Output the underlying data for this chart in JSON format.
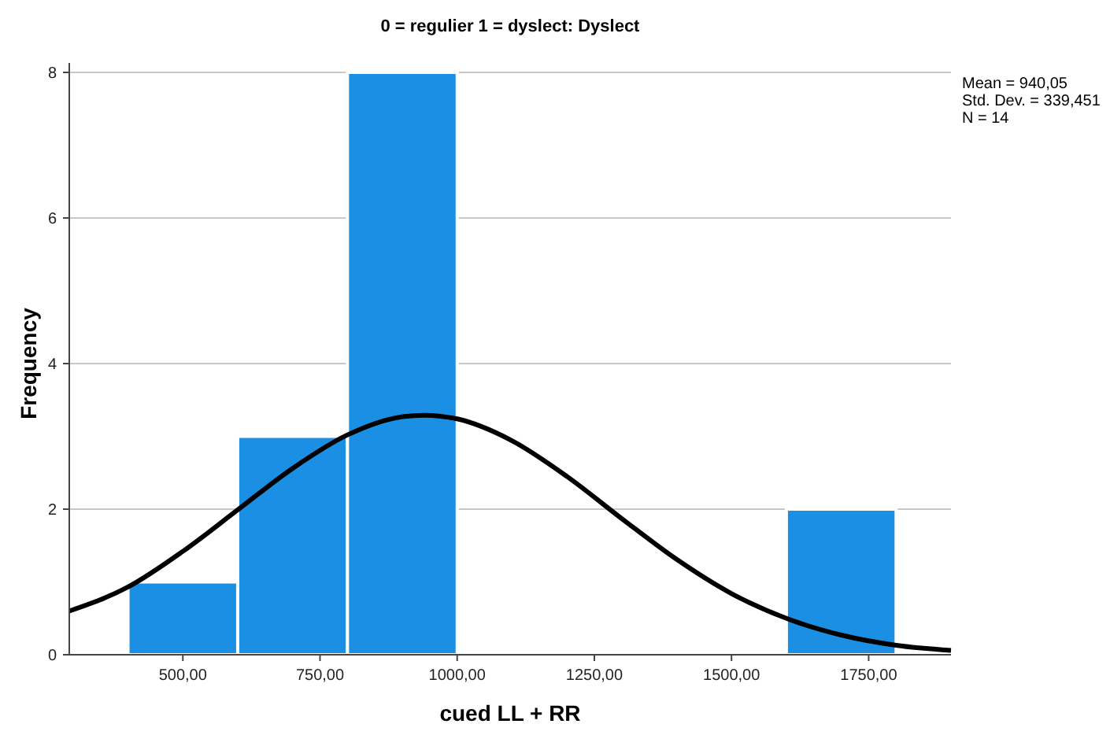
{
  "chart_data": {
    "type": "histogram",
    "title": "0 = regulier 1 = dyslect: Dyslect",
    "xlabel": "cued LL + RR",
    "ylabel": "Frequency",
    "bins": [
      400,
      600,
      800,
      1000,
      1200,
      1400,
      1600,
      1800
    ],
    "values": [
      1,
      3,
      8,
      0,
      0,
      0,
      2
    ],
    "color": "#1a8fe3",
    "series": [
      {
        "type": "line",
        "color": "#000000",
        "x": [
          293,
          400,
          500,
          600,
          700,
          800,
          900,
          940,
          1000,
          1100,
          1200,
          1300,
          1400,
          1500,
          1600,
          1700,
          1800,
          1900
        ],
        "values": [
          0.6,
          0.93,
          1.42,
          1.99,
          2.56,
          3.02,
          3.27,
          3.29,
          3.24,
          2.94,
          2.45,
          1.87,
          1.31,
          0.84,
          0.5,
          0.27,
          0.13,
          0.06
        ]
      }
    ],
    "xlim": [
      293,
      1900
    ],
    "ylim": [
      0,
      8
    ],
    "xticks": [
      {
        "value": 500,
        "label": "500,00"
      },
      {
        "value": 750,
        "label": "750,00"
      },
      {
        "value": 1000,
        "label": "1000,00"
      },
      {
        "value": 1250,
        "label": "1250,00"
      },
      {
        "value": 1500,
        "label": "1500,00"
      },
      {
        "value": 1750,
        "label": "1750,00"
      }
    ],
    "yticks": [
      0,
      2,
      4,
      6,
      8
    ],
    "grid": "y",
    "line_style": "solid",
    "marker": "none",
    "annotations": [
      "Mean = 940,05",
      "Std. Dev. = 339,451",
      "N = 14"
    ]
  }
}
